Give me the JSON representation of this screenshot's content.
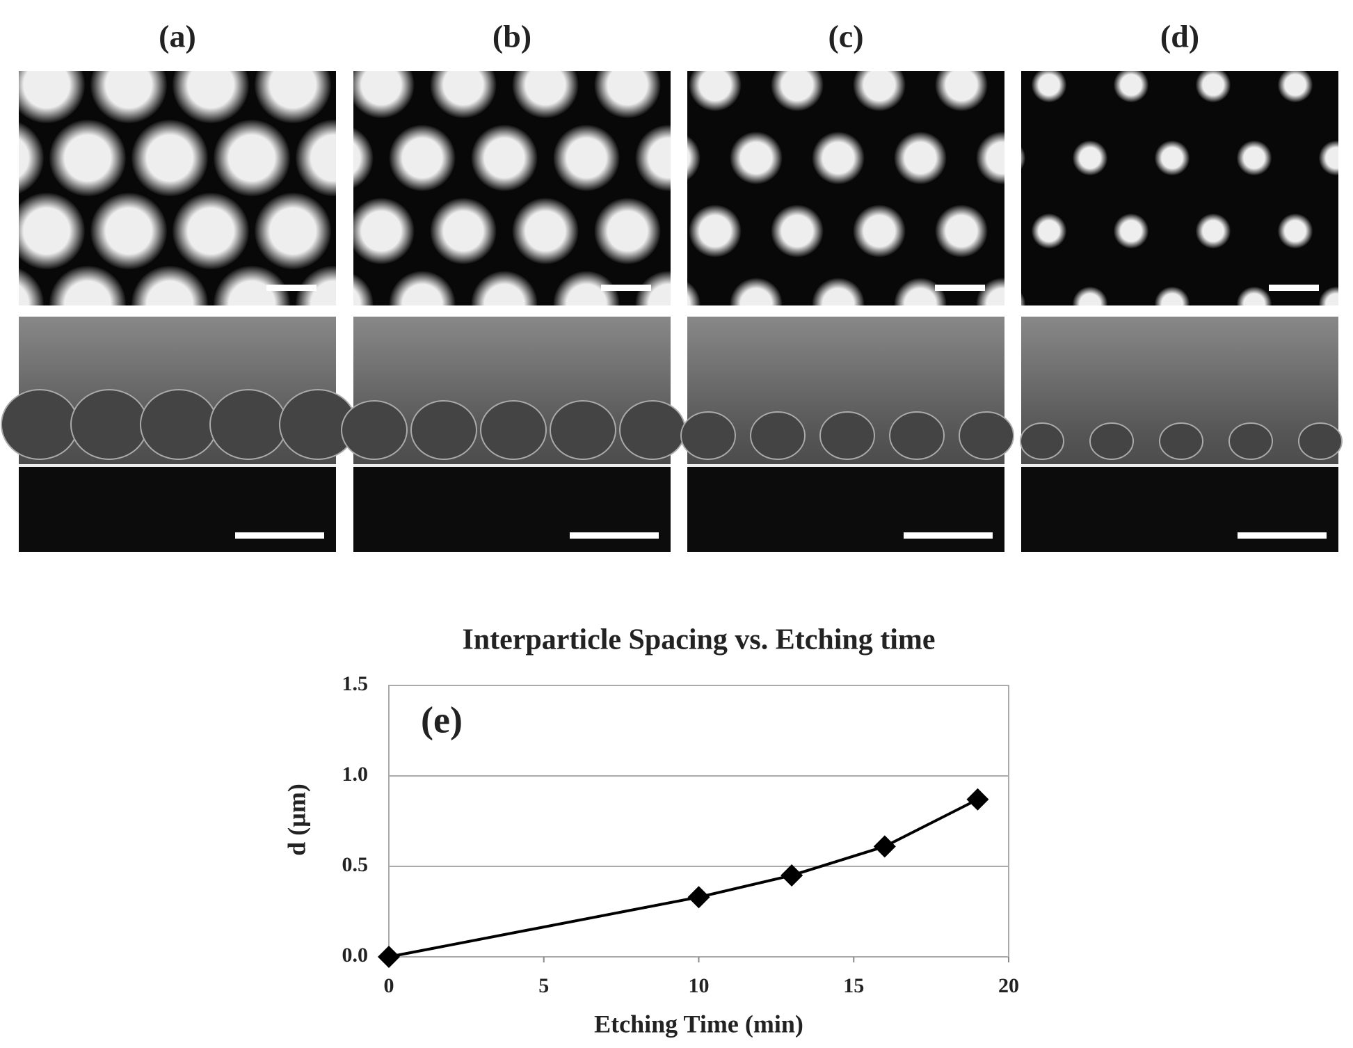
{
  "panels": [
    "(a)",
    "(b)",
    "(c)",
    "(d)"
  ],
  "chart_data": {
    "type": "line",
    "title": "Interparticle Spacing vs. Etching time",
    "annotation": "(e)",
    "x_label": "Etching Time (min)",
    "y_label": "d (µm)",
    "x": [
      0,
      10,
      13,
      16,
      19
    ],
    "series": [
      {
        "name": "d",
        "color": "#000000",
        "values": [
          0,
          0.33,
          0.45,
          0.61,
          0.87
        ]
      }
    ],
    "xlim": [
      0,
      20
    ],
    "xticks": [
      0,
      5,
      10,
      15,
      20
    ],
    "ylim": [
      0,
      1.5
    ],
    "yticks": [
      {
        "value": 0,
        "label": "0.0"
      },
      {
        "value": 0.5,
        "label": "0.5"
      },
      {
        "value": 1,
        "label": "1.0"
      },
      {
        "value": 1.5,
        "label": "1.5"
      }
    ],
    "grid": true
  }
}
